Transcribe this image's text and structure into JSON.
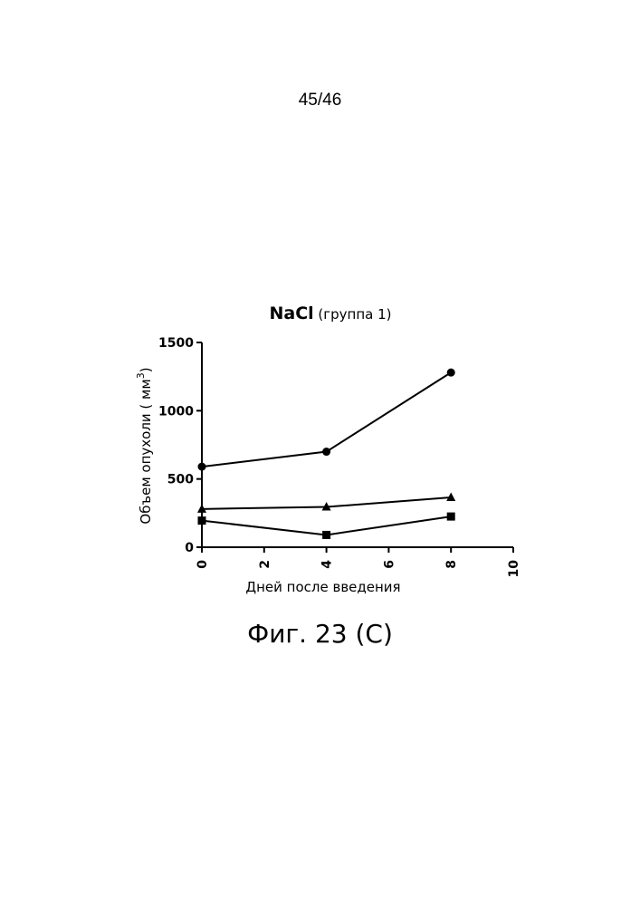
{
  "page_number": "45/46",
  "caption": "Фиг. 23 (С)",
  "chart_data": {
    "type": "line",
    "title_bold": "NaCl",
    "title_rest": " (группа 1)",
    "xlabel": "Дней после введения",
    "ylabel": "Объем опухоли",
    "ylabel_unit": "( мм",
    "ylabel_exp": "3",
    "ylabel_close": ")",
    "xlim": [
      0,
      10
    ],
    "ylim": [
      0,
      1500
    ],
    "xticks": [
      0,
      2,
      4,
      6,
      8,
      10
    ],
    "yticks": [
      0,
      500,
      1000,
      1500
    ],
    "xtick_labels": [
      "0",
      "2",
      "4",
      "6",
      "8",
      "10"
    ],
    "ytick_labels": [
      "0",
      "500",
      "1000",
      "1500"
    ],
    "series": [
      {
        "marker": "circle",
        "x": [
          0,
          4,
          8
        ],
        "values": [
          590,
          700,
          1280
        ]
      },
      {
        "marker": "triangle",
        "x": [
          0,
          4,
          8
        ],
        "values": [
          280,
          295,
          365
        ]
      },
      {
        "marker": "square",
        "x": [
          0,
          4,
          8
        ],
        "values": [
          195,
          90,
          225
        ]
      }
    ]
  }
}
